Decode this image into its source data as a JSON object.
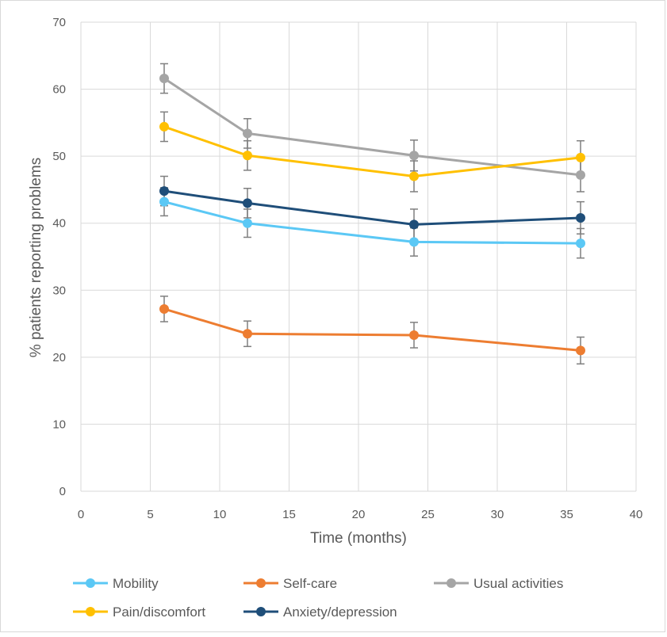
{
  "chart_data": {
    "type": "line",
    "title": "",
    "xlabel": "Time (months)",
    "ylabel": "% patients reporting problems",
    "xlim": [
      0,
      40
    ],
    "ylim": [
      0,
      70
    ],
    "xticks": [
      0,
      5,
      10,
      15,
      20,
      25,
      30,
      35,
      40
    ],
    "yticks": [
      0,
      10,
      20,
      30,
      40,
      50,
      60,
      70
    ],
    "grid": true,
    "legend_position": "bottom",
    "x": [
      6,
      12,
      24,
      36
    ],
    "series": [
      {
        "name": "Mobility",
        "color": "#5bc8f5",
        "values": [
          43.2,
          40.0,
          37.2,
          37.0
        ],
        "err_low": [
          41.1,
          37.9,
          35.1,
          34.8
        ],
        "err_high": [
          45.3,
          42.1,
          39.3,
          39.2
        ]
      },
      {
        "name": "Self-care",
        "color": "#ed7d31",
        "values": [
          27.2,
          23.5,
          23.3,
          21.0
        ],
        "err_low": [
          25.3,
          21.6,
          21.4,
          19.0
        ],
        "err_high": [
          29.1,
          25.4,
          25.2,
          23.0
        ]
      },
      {
        "name": "Usual activities",
        "color": "#a5a5a5",
        "values": [
          61.6,
          53.4,
          50.1,
          47.2
        ],
        "err_low": [
          59.4,
          51.2,
          47.8,
          44.7
        ],
        "err_high": [
          63.8,
          55.6,
          52.4,
          49.7
        ]
      },
      {
        "name": "Pain/discomfort",
        "color": "#ffc000",
        "values": [
          54.4,
          50.1,
          47.0,
          49.8
        ],
        "err_low": [
          52.2,
          47.9,
          44.7,
          47.3
        ],
        "err_high": [
          56.6,
          52.3,
          49.3,
          52.3
        ]
      },
      {
        "name": "Anxiety/depression",
        "color": "#1f4e79",
        "values": [
          44.8,
          43.0,
          39.8,
          40.8
        ],
        "err_low": [
          42.6,
          40.8,
          37.5,
          38.4
        ],
        "err_high": [
          47.0,
          45.2,
          42.1,
          43.2
        ]
      }
    ]
  }
}
